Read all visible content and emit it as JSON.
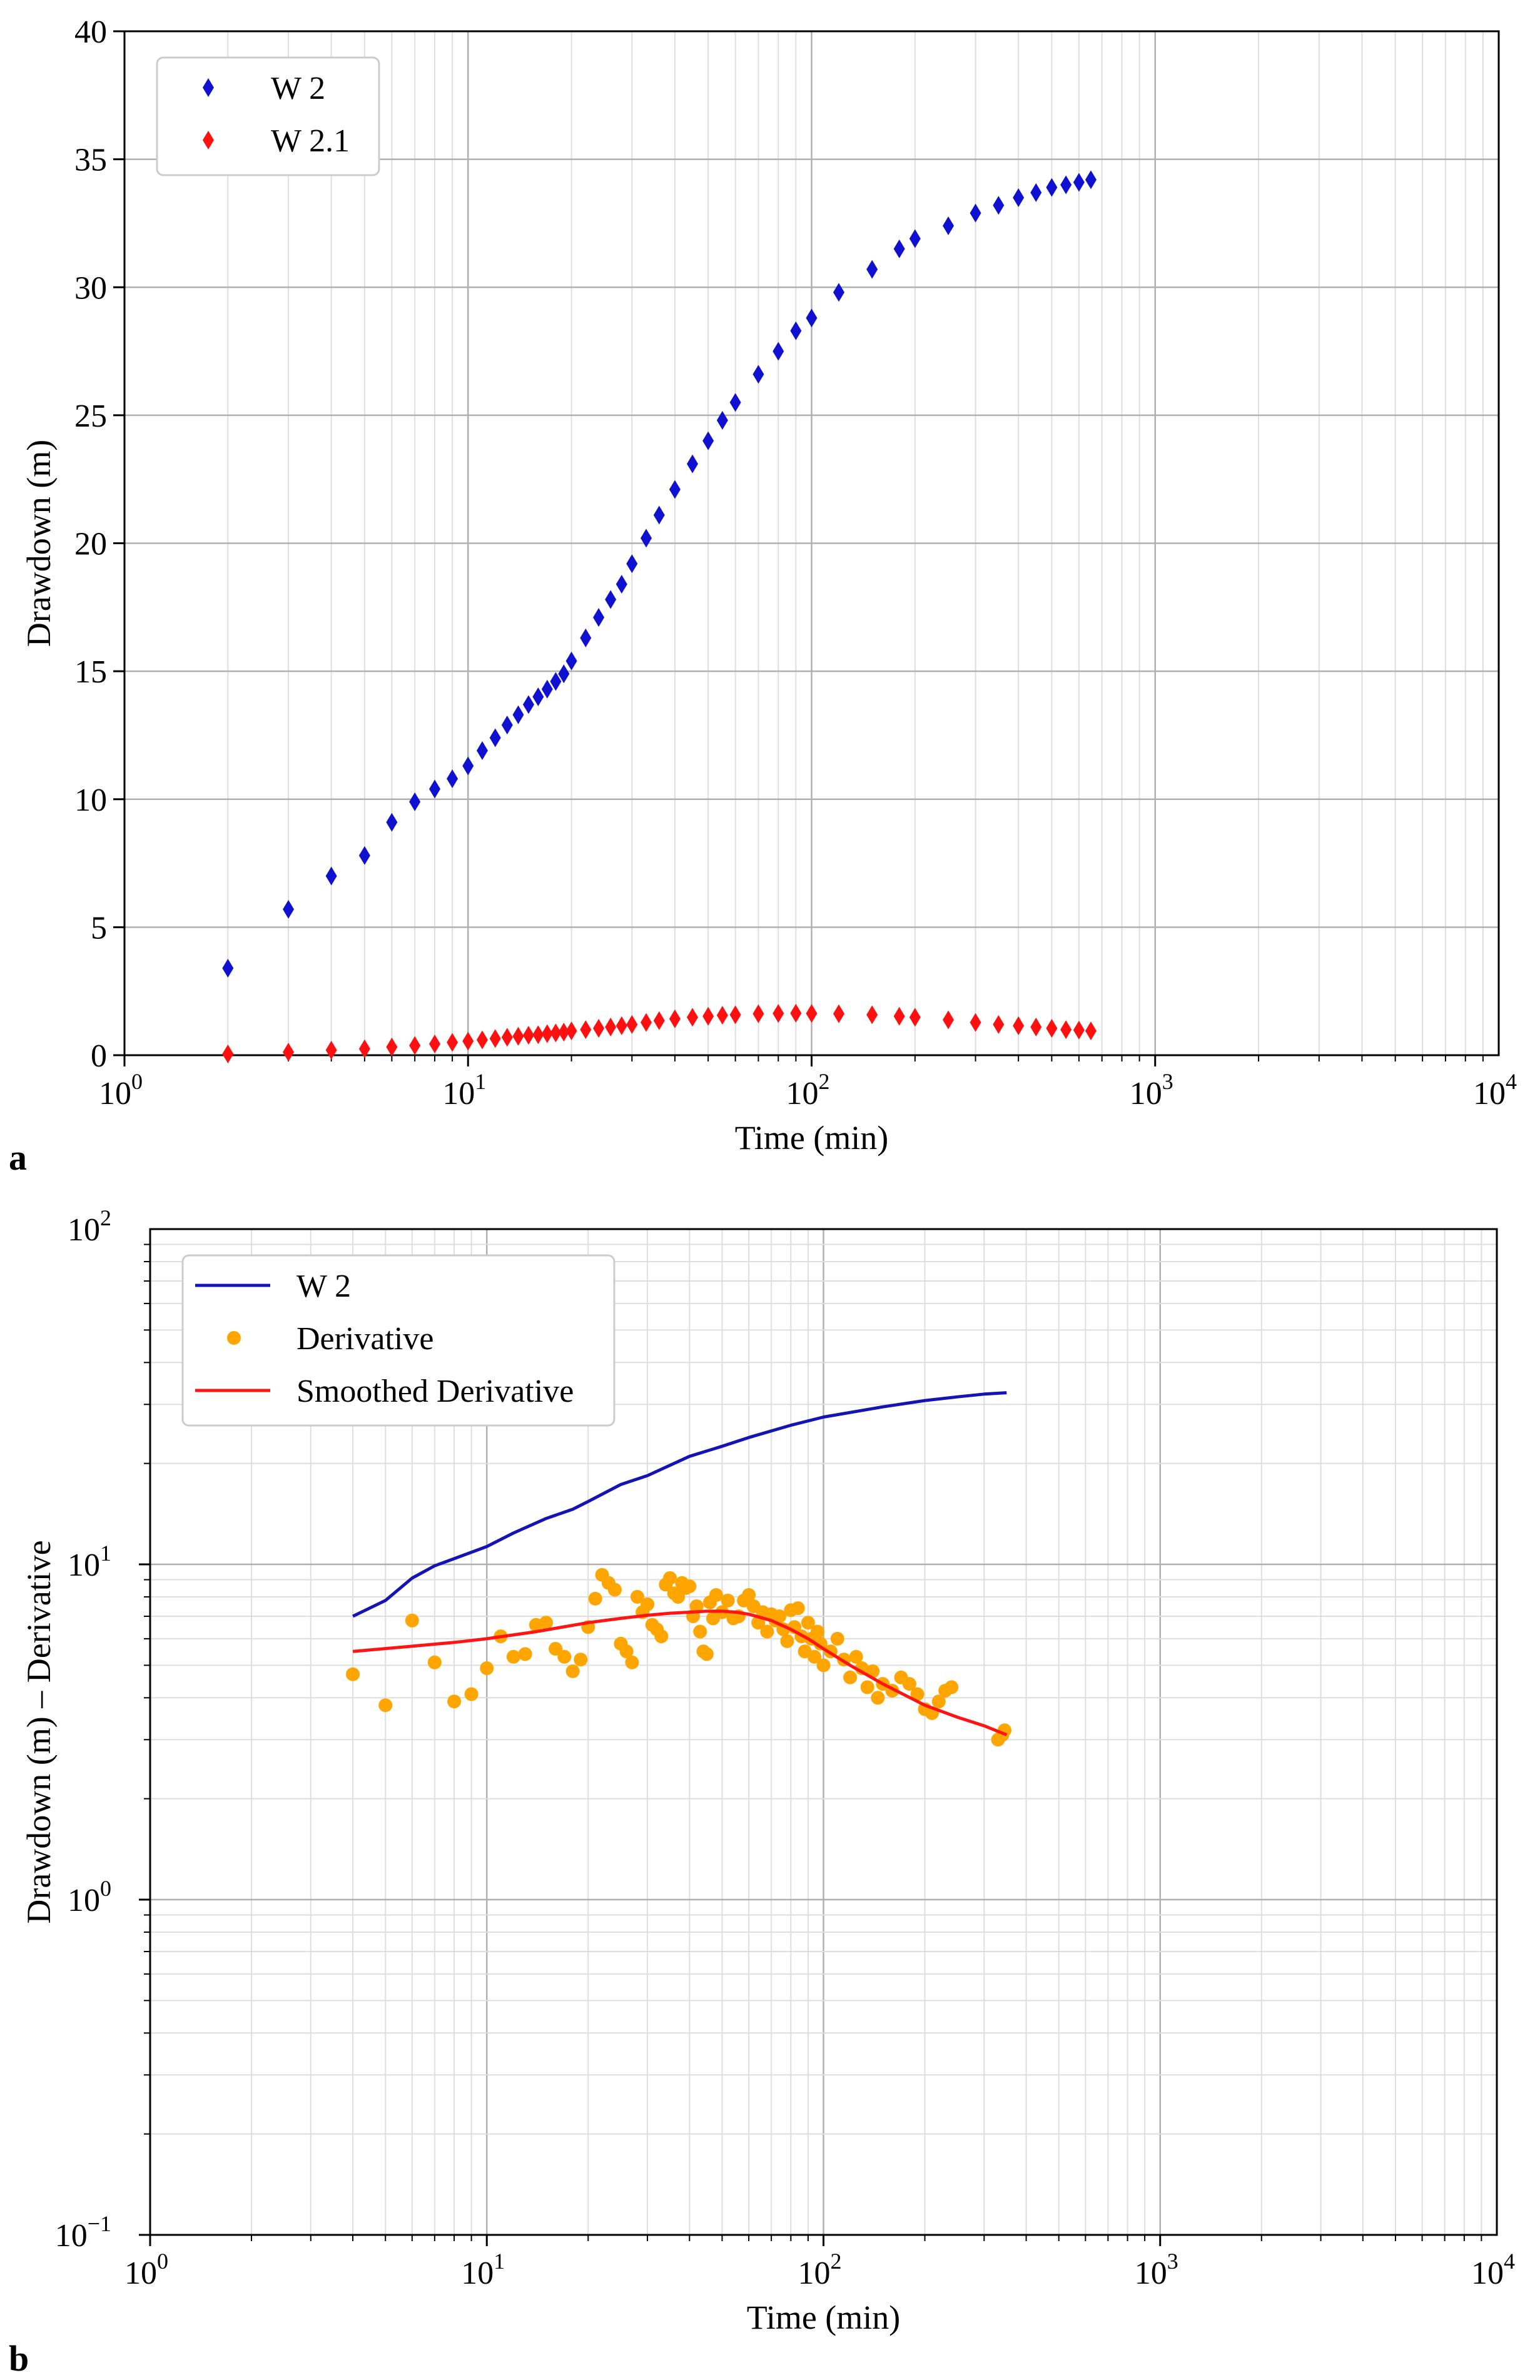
{
  "chart_data": [
    {
      "panel": "a",
      "type": "scatter",
      "xscale": "log",
      "yscale": "linear",
      "xlim": [
        1,
        10000
      ],
      "ylim": [
        0,
        40
      ],
      "xlabel": "Time (min)",
      "ylabel": "Drawdown (m)",
      "x_tick_labels": [
        "10",
        "10",
        "10",
        "10",
        "10"
      ],
      "x_tick_exponents": [
        "0",
        "1",
        "2",
        "3",
        "4"
      ],
      "y_ticks": [
        0,
        5,
        10,
        15,
        20,
        25,
        30,
        35,
        40
      ],
      "y_tick_labels": [
        "0",
        "5",
        "10",
        "15",
        "20",
        "25",
        "30",
        "35",
        "40"
      ],
      "grid": true,
      "legend": {
        "location": "top-left",
        "entries": [
          "W 2",
          "W 2.1"
        ]
      },
      "series": [
        {
          "name": "W 2",
          "marker": "diamond",
          "color": "#1010d0",
          "x": [
            2,
            3,
            4,
            5,
            6,
            7,
            8,
            9,
            10,
            11,
            12,
            13,
            14,
            15,
            16,
            17,
            18,
            19,
            20,
            22,
            24,
            26,
            28,
            30,
            33,
            36,
            40,
            45,
            50,
            55,
            60,
            70,
            80,
            90,
            100,
            120,
            150,
            180,
            200,
            250,
            300,
            350,
            400,
            450,
            500,
            550,
            600,
            650
          ],
          "y": [
            3.4,
            5.7,
            7.0,
            7.8,
            9.1,
            9.9,
            10.4,
            10.8,
            11.3,
            11.9,
            12.4,
            12.9,
            13.3,
            13.7,
            14.0,
            14.3,
            14.6,
            14.9,
            15.4,
            16.3,
            17.1,
            17.8,
            18.4,
            19.2,
            20.2,
            21.1,
            22.1,
            23.1,
            24.0,
            24.8,
            25.5,
            26.6,
            27.5,
            28.3,
            28.8,
            29.8,
            30.7,
            31.5,
            31.9,
            32.4,
            32.9,
            33.2,
            33.5,
            33.7,
            33.9,
            34.0,
            34.1,
            34.2
          ]
        },
        {
          "name": "W 2.1",
          "marker": "diamond",
          "color": "#ff1010",
          "x": [
            2,
            3,
            4,
            5,
            6,
            7,
            8,
            9,
            10,
            11,
            12,
            13,
            14,
            15,
            16,
            17,
            18,
            19,
            20,
            22,
            24,
            26,
            28,
            30,
            33,
            36,
            40,
            45,
            50,
            55,
            60,
            70,
            80,
            90,
            100,
            120,
            150,
            180,
            200,
            250,
            300,
            350,
            400,
            450,
            500,
            550,
            600,
            650
          ],
          "y": [
            0.05,
            0.12,
            0.2,
            0.25,
            0.32,
            0.38,
            0.44,
            0.5,
            0.55,
            0.6,
            0.65,
            0.7,
            0.74,
            0.78,
            0.8,
            0.84,
            0.87,
            0.9,
            0.95,
            1.0,
            1.05,
            1.1,
            1.15,
            1.2,
            1.28,
            1.35,
            1.42,
            1.48,
            1.52,
            1.56,
            1.58,
            1.62,
            1.63,
            1.64,
            1.63,
            1.62,
            1.58,
            1.52,
            1.48,
            1.38,
            1.28,
            1.2,
            1.15,
            1.1,
            1.05,
            1.0,
            0.98,
            0.95
          ]
        }
      ]
    },
    {
      "panel": "b",
      "type": "line",
      "xscale": "log",
      "yscale": "log",
      "xlim": [
        1,
        10000
      ],
      "ylim": [
        0.1,
        100
      ],
      "xlabel": "Time (min)",
      "ylabel": "Drawdown (m) – Derivative",
      "x_tick_labels": [
        "10",
        "10",
        "10",
        "10",
        "10"
      ],
      "x_tick_exponents": [
        "0",
        "1",
        "2",
        "3",
        "4"
      ],
      "y_tick_labels": [
        "10",
        "10",
        "10",
        "10"
      ],
      "y_tick_exponents": [
        "−1",
        "0",
        "1",
        "2"
      ],
      "grid": true,
      "legend": {
        "location": "top-left",
        "entries": [
          "W 2",
          "Derivative",
          "Smoothed Derivative"
        ]
      },
      "series": [
        {
          "name": "W 2",
          "style": "line",
          "color": "#1414b4",
          "x": [
            4,
            5,
            6,
            7,
            8,
            10,
            12,
            15,
            18,
            20,
            25,
            30,
            40,
            50,
            60,
            80,
            100,
            150,
            200,
            250,
            300,
            350
          ],
          "y": [
            7.0,
            7.8,
            9.1,
            9.9,
            10.4,
            11.3,
            12.4,
            13.7,
            14.6,
            15.4,
            17.3,
            18.4,
            21.0,
            22.5,
            23.9,
            26.0,
            27.5,
            29.5,
            30.8,
            31.6,
            32.2,
            32.5
          ]
        },
        {
          "name": "Derivative",
          "style": "points",
          "color": "#ffa500",
          "x": [
            4,
            5,
            6,
            7,
            8,
            9,
            10,
            11,
            12,
            13,
            14,
            15,
            16,
            17,
            18,
            19,
            20,
            21,
            22,
            23,
            24,
            25,
            26,
            27,
            28,
            29,
            30,
            31,
            32,
            33,
            34,
            35,
            36,
            37,
            38,
            39,
            40,
            41,
            42,
            43,
            44,
            45,
            46,
            47,
            48,
            50,
            52,
            54,
            56,
            58,
            60,
            62,
            64,
            66,
            68,
            70,
            72,
            74,
            76,
            78,
            80,
            82,
            84,
            86,
            88,
            90,
            92,
            94,
            96,
            98,
            100,
            105,
            110,
            115,
            120,
            125,
            130,
            135,
            140,
            145,
            150,
            160,
            170,
            180,
            190,
            200,
            210,
            220,
            230,
            240,
            330,
            340,
            345
          ],
          "y": [
            4.7,
            3.8,
            6.8,
            5.1,
            3.9,
            4.1,
            4.9,
            6.1,
            5.3,
            5.4,
            6.6,
            6.7,
            5.6,
            5.3,
            4.8,
            5.2,
            6.5,
            7.9,
            9.3,
            8.8,
            8.4,
            5.8,
            5.5,
            5.1,
            8.0,
            7.2,
            7.6,
            6.6,
            6.4,
            6.1,
            8.7,
            9.1,
            8.2,
            8.0,
            8.8,
            8.5,
            8.6,
            7.0,
            7.5,
            6.3,
            5.5,
            5.4,
            7.7,
            6.9,
            8.1,
            7.2,
            7.8,
            6.9,
            7.0,
            7.8,
            8.1,
            7.5,
            6.7,
            7.2,
            6.3,
            7.1,
            6.8,
            7.0,
            6.4,
            5.9,
            7.3,
            6.5,
            7.4,
            6.1,
            5.5,
            6.7,
            6.0,
            5.3,
            6.3,
            5.8,
            5.0,
            5.5,
            6.0,
            5.2,
            4.6,
            5.3,
            4.9,
            4.3,
            4.8,
            4.0,
            4.4,
            4.2,
            4.6,
            4.4,
            4.1,
            3.7,
            3.6,
            3.9,
            4.2,
            4.3,
            3.0,
            3.1,
            3.2
          ]
        },
        {
          "name": "Smoothed Derivative",
          "style": "line",
          "color": "#ff1414",
          "x": [
            4,
            6,
            8,
            10,
            14,
            20,
            25,
            30,
            35,
            40,
            45,
            50,
            55,
            60,
            70,
            80,
            90,
            100,
            120,
            150,
            200,
            250,
            300,
            350
          ],
          "y": [
            5.5,
            5.7,
            5.85,
            6.0,
            6.3,
            6.7,
            6.9,
            7.05,
            7.15,
            7.2,
            7.25,
            7.25,
            7.2,
            7.1,
            6.8,
            6.4,
            6.0,
            5.6,
            5.0,
            4.4,
            3.8,
            3.5,
            3.3,
            3.1
          ]
        }
      ]
    }
  ]
}
